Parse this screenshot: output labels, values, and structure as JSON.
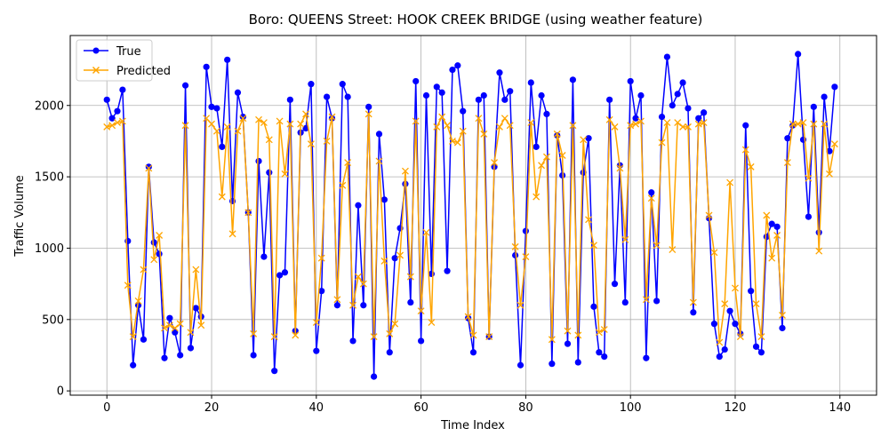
{
  "chart_data": {
    "type": "line",
    "title": "Boro: QUEENS Street: HOOK CREEK BRIDGE (using weather feature)",
    "xlabel": "Time Index",
    "ylabel": "Traffic Volume",
    "xlim": [
      -7,
      147
    ],
    "ylim": [
      -30,
      2490
    ],
    "xticks": [
      0,
      20,
      40,
      60,
      80,
      100,
      120,
      140
    ],
    "yticks": [
      0,
      500,
      1000,
      1500,
      2000
    ],
    "grid": true,
    "legend_position": "top-left",
    "series": [
      {
        "name": "True",
        "color": "#0000ff",
        "marker": "circle",
        "values": [
          2040,
          1910,
          1960,
          2110,
          1050,
          180,
          600,
          360,
          1570,
          1040,
          960,
          230,
          510,
          410,
          250,
          2140,
          300,
          580,
          520,
          2270,
          1990,
          1980,
          1710,
          2320,
          1330,
          2090,
          1920,
          1250,
          250,
          1610,
          940,
          1530,
          140,
          810,
          830,
          2040,
          420,
          1810,
          1840,
          2150,
          280,
          700,
          2060,
          1910,
          600,
          2150,
          2060,
          350,
          1300,
          600,
          1990,
          100,
          1800,
          1340,
          270,
          930,
          1140,
          1450,
          620,
          2170,
          350,
          2070,
          820,
          2130,
          2090,
          840,
          2250,
          2280,
          1960,
          510,
          270,
          2040,
          2070,
          380,
          1570,
          2230,
          2040,
          2100,
          950,
          180,
          1120,
          2160,
          1710,
          2070,
          1940,
          190,
          1790,
          1510,
          330,
          2180,
          200,
          1530,
          1770,
          590,
          270,
          240,
          2040,
          750,
          1580,
          620,
          2170,
          1910,
          2070,
          230,
          1390,
          630,
          1920,
          2340,
          2000,
          2080,
          2160,
          1980,
          550,
          1910,
          1950,
          1210,
          470,
          240,
          290,
          560,
          470,
          400,
          1860,
          700,
          310,
          270,
          1080,
          1170,
          1150,
          440,
          1770,
          1860,
          2360,
          1760,
          1220,
          1990,
          1110,
          2060,
          1680,
          2130
        ]
      },
      {
        "name": "Predicted",
        "color": "#ffa500",
        "marker": "x",
        "values": [
          1850,
          1860,
          1880,
          1890,
          740,
          380,
          630,
          850,
          1560,
          920,
          1090,
          440,
          460,
          440,
          470,
          1860,
          410,
          850,
          460,
          1910,
          1870,
          1820,
          1360,
          1850,
          1100,
          1820,
          1910,
          1250,
          400,
          1900,
          1880,
          1760,
          380,
          1890,
          1520,
          1870,
          390,
          1870,
          1940,
          1730,
          480,
          930,
          1750,
          1920,
          640,
          1440,
          1600,
          600,
          800,
          750,
          1940,
          380,
          1610,
          910,
          400,
          470,
          950,
          1540,
          800,
          1890,
          560,
          1110,
          480,
          1850,
          1920,
          1860,
          1750,
          1740,
          1820,
          520,
          390,
          1910,
          1800,
          380,
          1600,
          1850,
          1910,
          1860,
          1010,
          600,
          940,
          1880,
          1360,
          1580,
          1640,
          360,
          1800,
          1650,
          420,
          1860,
          390,
          1760,
          1200,
          1020,
          410,
          430,
          1900,
          1850,
          1560,
          1060,
          1860,
          1870,
          1890,
          640,
          1350,
          1020,
          1740,
          1880,
          990,
          1880,
          1850,
          1850,
          620,
          1870,
          1880,
          1230,
          970,
          340,
          610,
          1460,
          720,
          380,
          1690,
          1570,
          610,
          380,
          1230,
          930,
          1090,
          530,
          1600,
          1870,
          1870,
          1880,
          1490,
          1870,
          980,
          1870,
          1520,
          1730
        ]
      }
    ]
  }
}
